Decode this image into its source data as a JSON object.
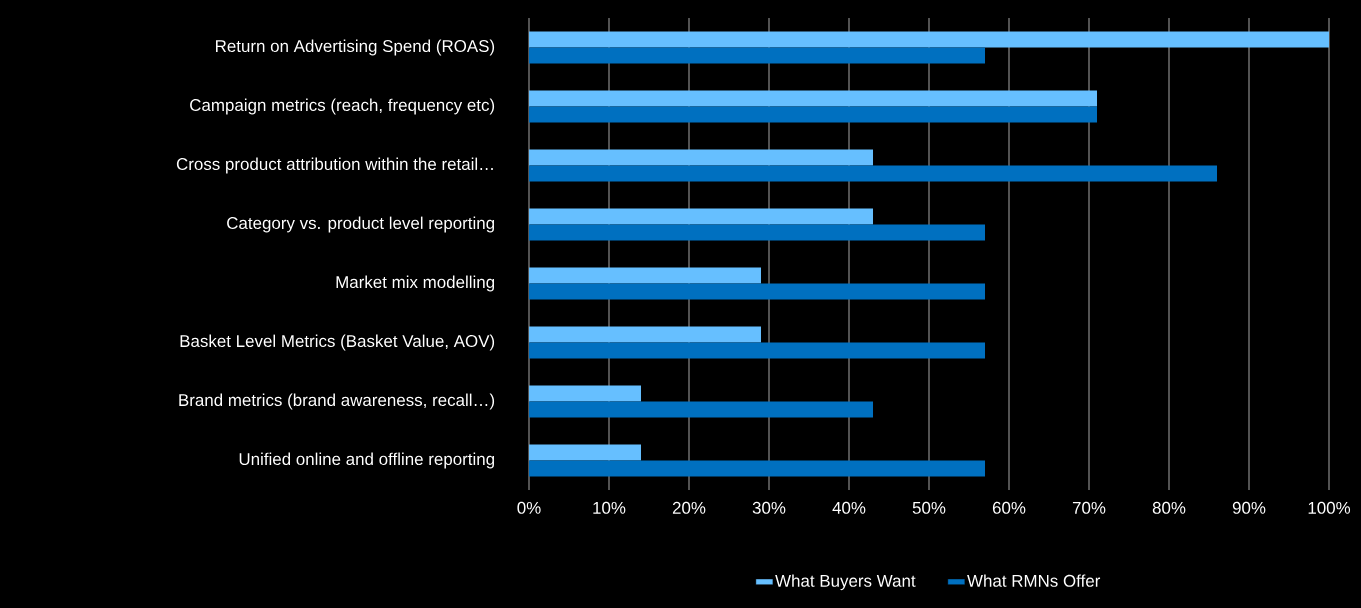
{
  "chart_data": {
    "type": "bar",
    "orientation": "horizontal",
    "categories": [
      "Return on Advertising Spend (ROAS)",
      "Campaign metrics (reach, frequency etc)",
      "Cross product attribution within the retail…",
      "Category vs. product level reporting",
      "Market mix modelling",
      "Basket Level Metrics (Basket Value, AOV)",
      "Brand metrics (brand awareness, recall…)",
      "Unified online and offline reporting"
    ],
    "series": [
      {
        "name": "What Buyers Want",
        "color": "#66bfff",
        "values": [
          100,
          71,
          43,
          43,
          29,
          29,
          14,
          14
        ]
      },
      {
        "name": "What RMNs Offer",
        "color": "#0070c0",
        "values": [
          57,
          71,
          86,
          57,
          57,
          57,
          43,
          57
        ]
      }
    ],
    "xlim": [
      0,
      100
    ],
    "xticks": [
      {
        "value": 0,
        "label": "0%"
      },
      {
        "value": 10,
        "label": "10%"
      },
      {
        "value": 20,
        "label": "20%"
      },
      {
        "value": 30,
        "label": "30%"
      },
      {
        "value": 40,
        "label": "40%"
      },
      {
        "value": 50,
        "label": "50%"
      },
      {
        "value": 60,
        "label": "60%"
      },
      {
        "value": 70,
        "label": "70%"
      },
      {
        "value": 80,
        "label": "80%"
      },
      {
        "value": 90,
        "label": "90%"
      },
      {
        "value": 100,
        "label": "100%"
      }
    ],
    "grid": "x",
    "legend": "bottom"
  }
}
